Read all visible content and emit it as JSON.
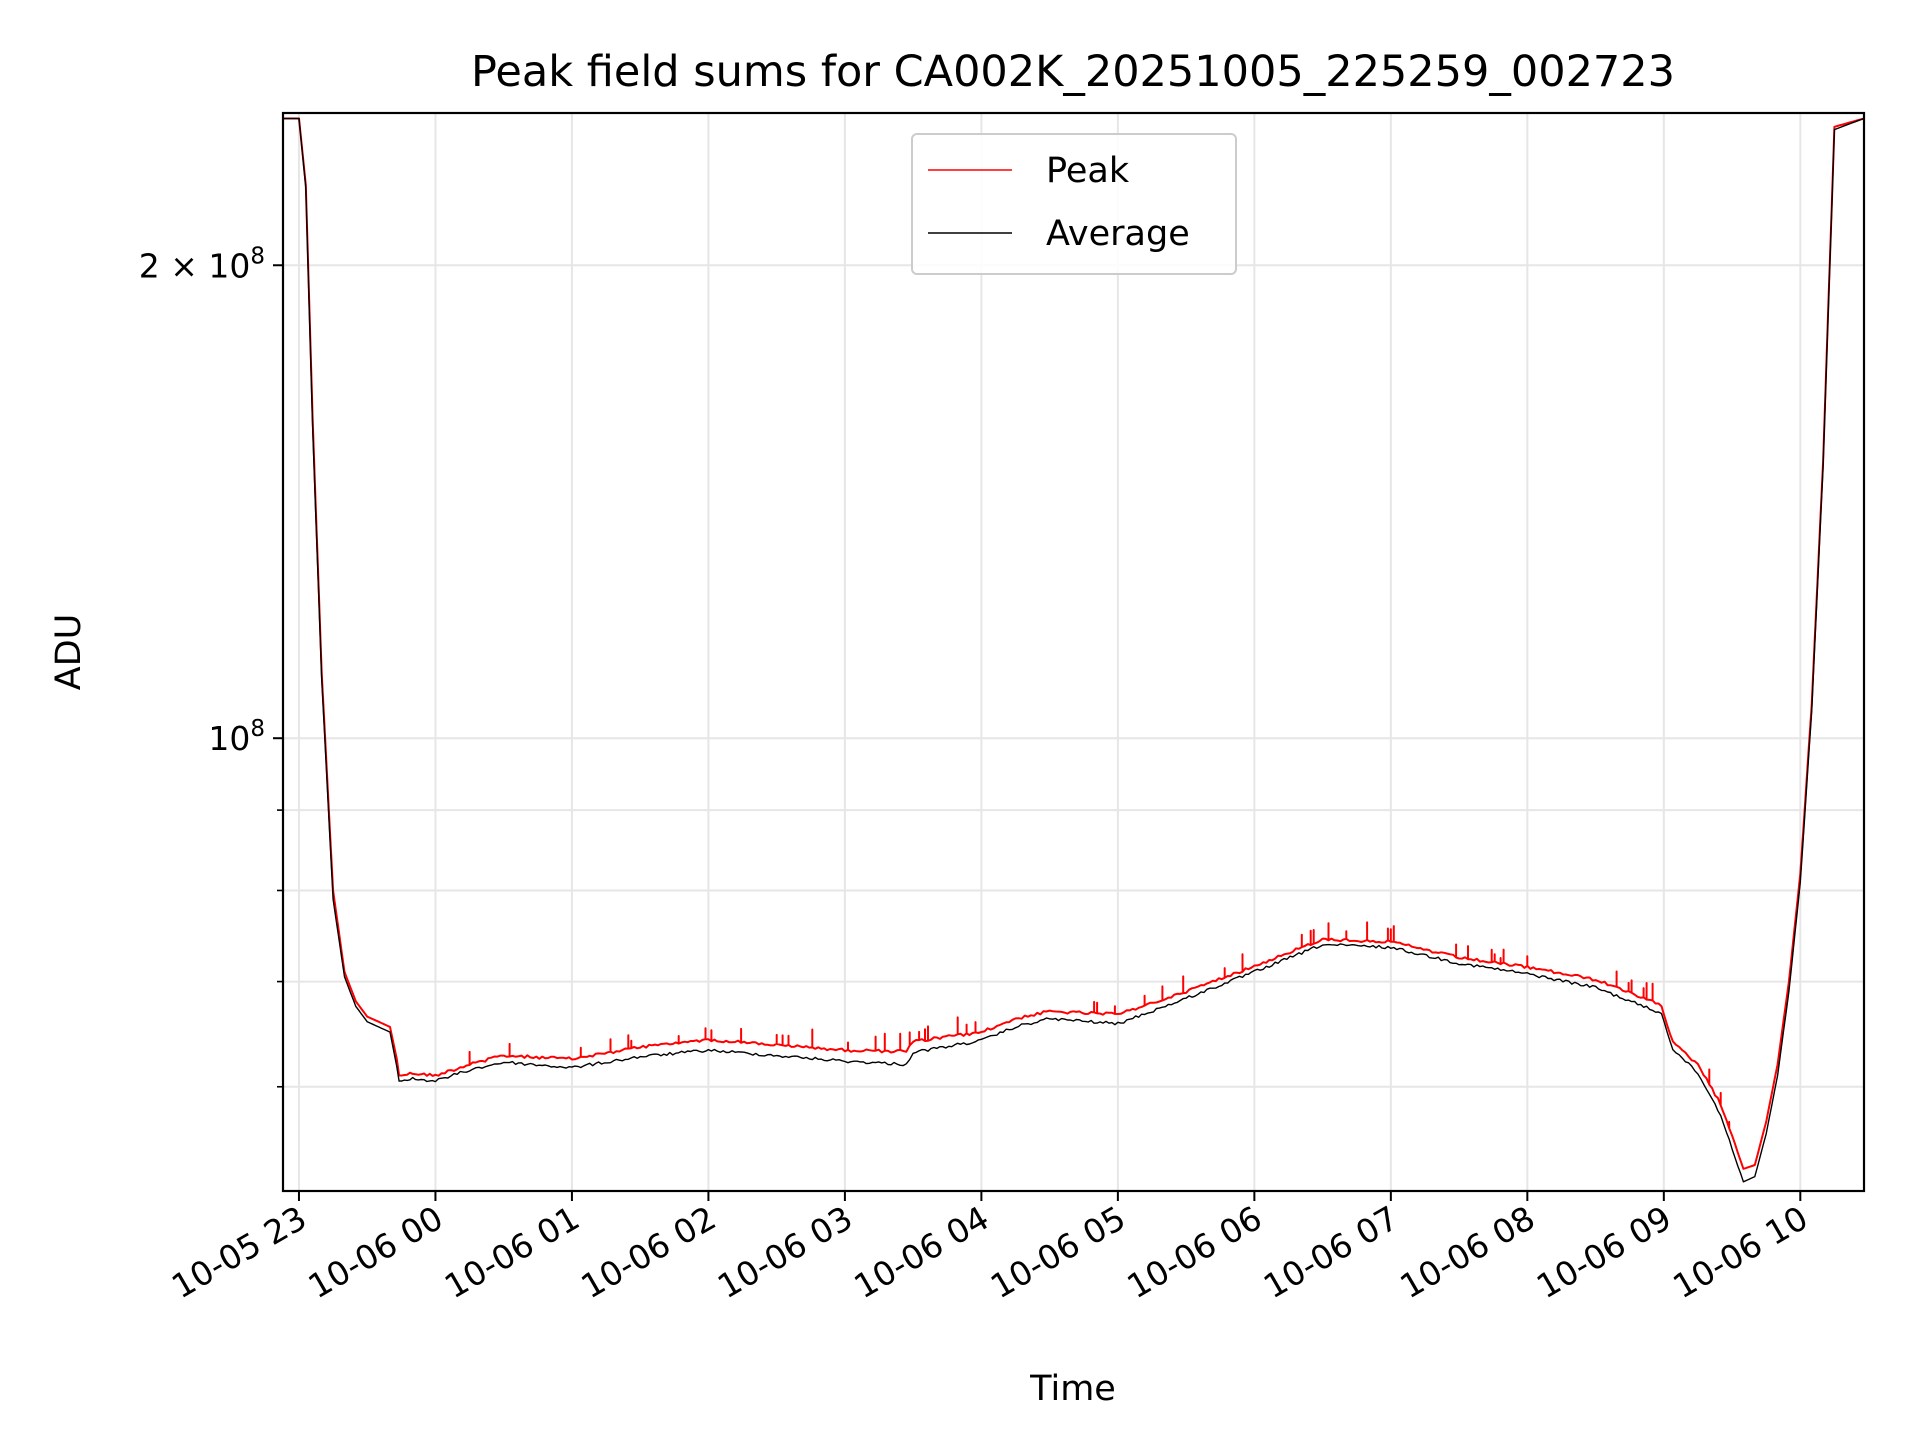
{
  "chart_data": {
    "type": "line",
    "title": "Peak field sums for CA002K_20251005_225259_002723",
    "xlabel": "Time",
    "ylabel": "ADU",
    "yscale": "log",
    "xlim": [
      "2025-10-05 22:52:59",
      "2025-10-06 10:28:00"
    ],
    "ylim": [
      51500000,
      250000000
    ],
    "grid": true,
    "legend_position": "top-center",
    "x_ticks": [
      {
        "t": "2025-10-05 23:00",
        "label": "10-05 23"
      },
      {
        "t": "2025-10-06 00:00",
        "label": "10-06 00"
      },
      {
        "t": "2025-10-06 01:00",
        "label": "10-06 01"
      },
      {
        "t": "2025-10-06 02:00",
        "label": "10-06 02"
      },
      {
        "t": "2025-10-06 03:00",
        "label": "10-06 03"
      },
      {
        "t": "2025-10-06 04:00",
        "label": "10-06 04"
      },
      {
        "t": "2025-10-06 05:00",
        "label": "10-06 05"
      },
      {
        "t": "2025-10-06 06:00",
        "label": "10-06 06"
      },
      {
        "t": "2025-10-06 07:00",
        "label": "10-06 07"
      },
      {
        "t": "2025-10-06 08:00",
        "label": "10-06 08"
      },
      {
        "t": "2025-10-06 09:00",
        "label": "10-06 09"
      },
      {
        "t": "2025-10-06 10:00",
        "label": "10-06 10"
      }
    ],
    "y_major_ticks": [
      {
        "value": 100000000,
        "base": "10",
        "exp": "8",
        "coef": ""
      },
      {
        "value": 200000000,
        "base": "10",
        "exp": "8",
        "coef": "2 × "
      }
    ],
    "y_minor_ticks": [
      60000000,
      70000000,
      80000000,
      90000000
    ],
    "series": [
      {
        "name": "Peak",
        "color": "#ff0000",
        "x": [
          "2025-10-05 22:52:59",
          "2025-10-05 23:00",
          "2025-10-05 23:03",
          "2025-10-05 23:06",
          "2025-10-05 23:10",
          "2025-10-05 23:15",
          "2025-10-05 23:20",
          "2025-10-05 23:25",
          "2025-10-05 23:30",
          "2025-10-05 23:35",
          "2025-10-05 23:40",
          "2025-10-05 23:43",
          "2025-10-05 23:44",
          "2025-10-05 23:50",
          "2025-10-06 00:00",
          "2025-10-06 00:15",
          "2025-10-06 00:30",
          "2025-10-06 01:00",
          "2025-10-06 01:30",
          "2025-10-06 02:00",
          "2025-10-06 02:30",
          "2025-10-06 03:00",
          "2025-10-06 03:27",
          "2025-10-06 03:30",
          "2025-10-06 04:00",
          "2025-10-06 04:15",
          "2025-10-06 04:30",
          "2025-10-06 05:00",
          "2025-10-06 05:30",
          "2025-10-06 06:00",
          "2025-10-06 06:30",
          "2025-10-06 07:00",
          "2025-10-06 07:30",
          "2025-10-06 08:00",
          "2025-10-06 08:30",
          "2025-10-06 08:59",
          "2025-10-06 09:04",
          "2025-10-06 09:15",
          "2025-10-06 09:25",
          "2025-10-06 09:35",
          "2025-10-06 09:40",
          "2025-10-06 09:45",
          "2025-10-06 09:50",
          "2025-10-06 09:55",
          "2025-10-06 10:00",
          "2025-10-06 10:05",
          "2025-10-06 10:10",
          "2025-10-06 10:15",
          "2025-10-06 10:28"
        ],
        "y": [
          248000000,
          248000000,
          225000000,
          160000000,
          110000000,
          80000000,
          71000000,
          68000000,
          66500000,
          66000000,
          65500000,
          62500000,
          61000000,
          61200000,
          61000000,
          62000000,
          62800000,
          62500000,
          63600000,
          64300000,
          63800000,
          63300000,
          63200000,
          64100000,
          65000000,
          66300000,
          67000000,
          66700000,
          69000000,
          71600000,
          74500000,
          74200000,
          72500000,
          71500000,
          70200000,
          67600000,
          64000000,
          62000000,
          58500000,
          53200000,
          53500000,
          57000000,
          62000000,
          70000000,
          82000000,
          105000000,
          150000000,
          245000000,
          248000000
        ]
      },
      {
        "name": "Average",
        "color": "#000000",
        "x": [
          "2025-10-05 22:52:59",
          "2025-10-05 23:00",
          "2025-10-05 23:03",
          "2025-10-05 23:06",
          "2025-10-05 23:10",
          "2025-10-05 23:15",
          "2025-10-05 23:20",
          "2025-10-05 23:25",
          "2025-10-05 23:30",
          "2025-10-05 23:35",
          "2025-10-05 23:40",
          "2025-10-05 23:43",
          "2025-10-05 23:44",
          "2025-10-05 23:50",
          "2025-10-06 00:00",
          "2025-10-06 00:15",
          "2025-10-06 00:30",
          "2025-10-06 01:00",
          "2025-10-06 01:30",
          "2025-10-06 02:00",
          "2025-10-06 02:30",
          "2025-10-06 03:00",
          "2025-10-06 03:27",
          "2025-10-06 03:30",
          "2025-10-06 04:00",
          "2025-10-06 04:15",
          "2025-10-06 04:30",
          "2025-10-06 05:00",
          "2025-10-06 05:30",
          "2025-10-06 06:00",
          "2025-10-06 06:30",
          "2025-10-06 07:00",
          "2025-10-06 07:30",
          "2025-10-06 08:00",
          "2025-10-06 08:30",
          "2025-10-06 08:59",
          "2025-10-06 09:04",
          "2025-10-06 09:15",
          "2025-10-06 09:25",
          "2025-10-06 09:35",
          "2025-10-06 09:40",
          "2025-10-06 09:45",
          "2025-10-06 09:50",
          "2025-10-06 09:55",
          "2025-10-06 10:00",
          "2025-10-06 10:05",
          "2025-10-06 10:10",
          "2025-10-06 10:15",
          "2025-10-06 10:28"
        ],
        "y": [
          248000000,
          248000000,
          224000000,
          158000000,
          109000000,
          79000000,
          70500000,
          67500000,
          66000000,
          65500000,
          65000000,
          61800000,
          60500000,
          60700000,
          60500000,
          61500000,
          62200000,
          61700000,
          62700000,
          63300000,
          62800000,
          62300000,
          62000000,
          63100000,
          64200000,
          65500000,
          66300000,
          65800000,
          68300000,
          71000000,
          73900000,
          73600000,
          71900000,
          70800000,
          69400000,
          66800000,
          63400000,
          61200000,
          57600000,
          52200000,
          52600000,
          56000000,
          61000000,
          69000000,
          81000000,
          104000000,
          149000000,
          244000000,
          248000000
        ]
      }
    ]
  }
}
